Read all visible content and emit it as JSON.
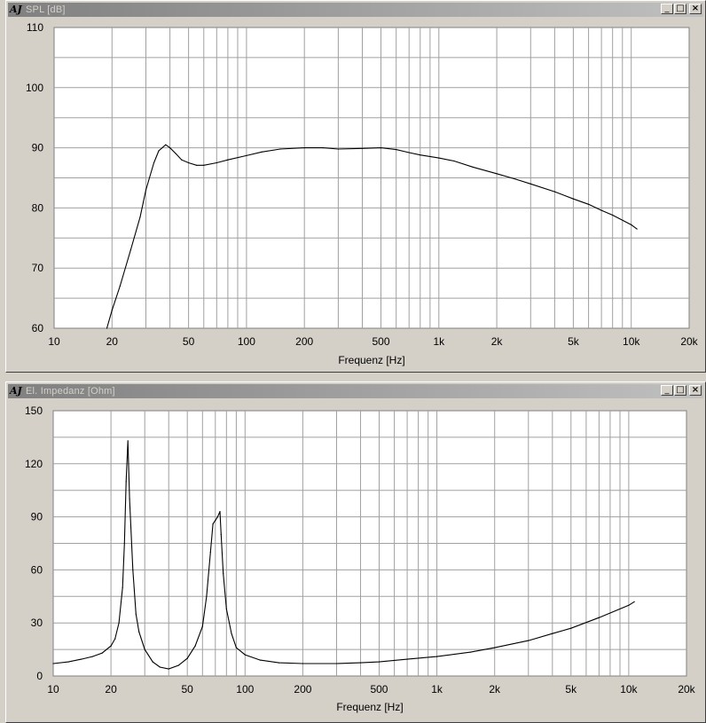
{
  "windows": [
    {
      "title": "SPL [dB]",
      "buttons": {
        "minimize": "_",
        "maximize": "□",
        "close": "×"
      }
    },
    {
      "title": "El. Impedanz [Ohm]",
      "buttons": {
        "minimize": "_",
        "maximize": "□",
        "close": "×"
      }
    }
  ],
  "chart_data": [
    {
      "type": "line",
      "title": "SPL [dB]",
      "xlabel": "Frequenz [Hz]",
      "ylabel": "",
      "xscale": "log",
      "xlim": [
        10,
        20000
      ],
      "ylim": [
        60,
        110
      ],
      "grid": true,
      "x_tick_values": [
        10,
        20,
        50,
        100,
        200,
        500,
        1000,
        2000,
        5000,
        10000,
        20000
      ],
      "x_tick_labels": [
        "10",
        "20",
        "50",
        "100",
        "200",
        "500",
        "1k",
        "2k",
        "5k",
        "10k",
        "20k"
      ],
      "y_tick_values": [
        60,
        70,
        80,
        90,
        100,
        110
      ],
      "y_tick_labels": [
        "60",
        "70",
        "80",
        "90",
        "100",
        "110"
      ],
      "series": [
        {
          "x": [
            18.8,
            20,
            22,
            25,
            28,
            30,
            33,
            35,
            38,
            40,
            43,
            46,
            50,
            55,
            60,
            70,
            80,
            100,
            120,
            150,
            200,
            250,
            300,
            400,
            500,
            600,
            700,
            800,
            1000,
            1200,
            1500,
            2000,
            2500,
            3000,
            4000,
            5000,
            6000,
            7000,
            8000,
            10000,
            10700
          ],
          "y": [
            60,
            63,
            67,
            73,
            78.5,
            83,
            87.5,
            89.5,
            90.5,
            90,
            89,
            88,
            87.5,
            87.1,
            87.1,
            87.5,
            88,
            88.7,
            89.3,
            89.8,
            90,
            90,
            89.8,
            89.9,
            90,
            89.7,
            89.2,
            88.8,
            88.3,
            87.8,
            86.8,
            85.7,
            84.8,
            84,
            82.7,
            81.5,
            80.6,
            79.6,
            78.8,
            77.2,
            76.5
          ]
        }
      ]
    },
    {
      "type": "line",
      "title": "El. Impedanz [Ohm]",
      "xlabel": "Frequenz [Hz]",
      "ylabel": "",
      "xscale": "log",
      "xlim": [
        10,
        20000
      ],
      "ylim": [
        0,
        150
      ],
      "grid": true,
      "x_tick_values": [
        10,
        20,
        50,
        100,
        200,
        500,
        1000,
        2000,
        5000,
        10000,
        20000
      ],
      "x_tick_labels": [
        "10",
        "20",
        "50",
        "100",
        "200",
        "500",
        "1k",
        "2k",
        "5k",
        "10k",
        "20k"
      ],
      "y_tick_values": [
        0,
        30,
        60,
        90,
        120,
        150
      ],
      "y_tick_labels": [
        "0",
        "30",
        "60",
        "90",
        "120",
        "150"
      ],
      "series": [
        {
          "x": [
            10,
            12,
            14,
            16,
            18,
            20,
            21,
            22,
            23,
            23.5,
            24,
            24.5,
            25,
            26,
            27,
            28,
            30,
            33,
            36,
            40,
            45,
            50,
            55,
            60,
            63,
            66,
            68,
            70,
            72,
            74,
            75,
            77,
            80,
            85,
            90,
            100,
            120,
            150,
            200,
            300,
            400,
            500,
            700,
            1000,
            1500,
            2000,
            3000,
            4000,
            5000,
            7000,
            10000,
            10700
          ],
          "y": [
            7,
            8,
            9.5,
            11,
            13,
            17,
            21,
            30,
            50,
            75,
            110,
            133,
            100,
            60,
            35,
            25,
            15,
            8,
            5,
            4,
            6,
            10,
            17,
            28,
            45,
            70,
            86,
            88,
            90,
            93,
            80,
            58,
            38,
            24,
            16,
            12,
            9,
            7.5,
            7,
            7,
            7.5,
            8,
            9.5,
            11,
            13.5,
            16,
            20,
            24,
            27,
            33,
            40,
            42
          ]
        }
      ]
    }
  ]
}
